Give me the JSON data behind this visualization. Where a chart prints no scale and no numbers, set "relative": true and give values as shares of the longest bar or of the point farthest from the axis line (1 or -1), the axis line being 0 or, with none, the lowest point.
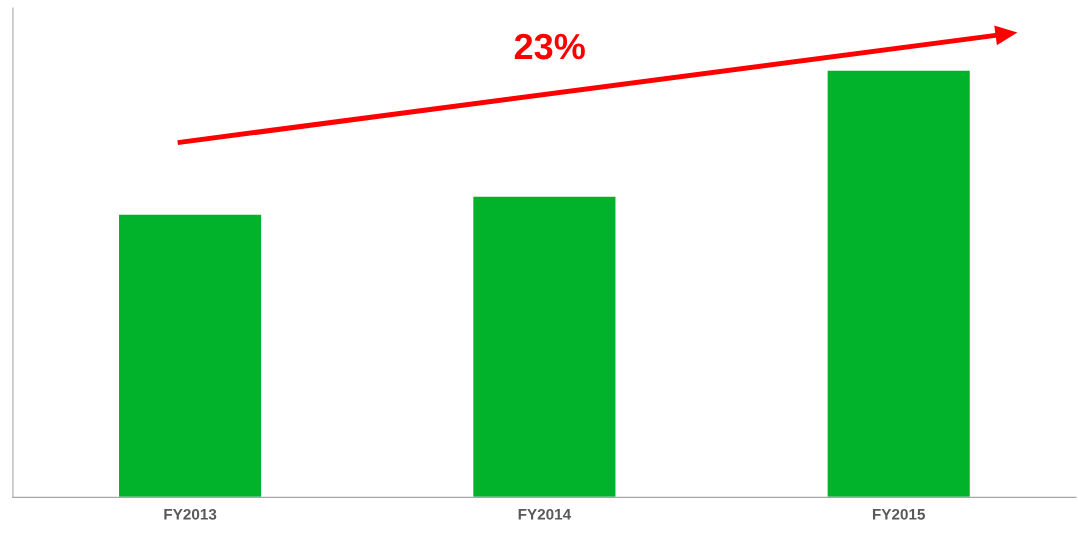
{
  "chart_data": {
    "type": "bar",
    "relative": true,
    "categories": [
      "FY2013",
      "FY2014",
      "FY2015"
    ],
    "values": [
      0.663,
      0.705,
      1
    ],
    "color": "#00b32a",
    "grid": false,
    "legend": false,
    "annotations": [
      "23%"
    ]
  }
}
